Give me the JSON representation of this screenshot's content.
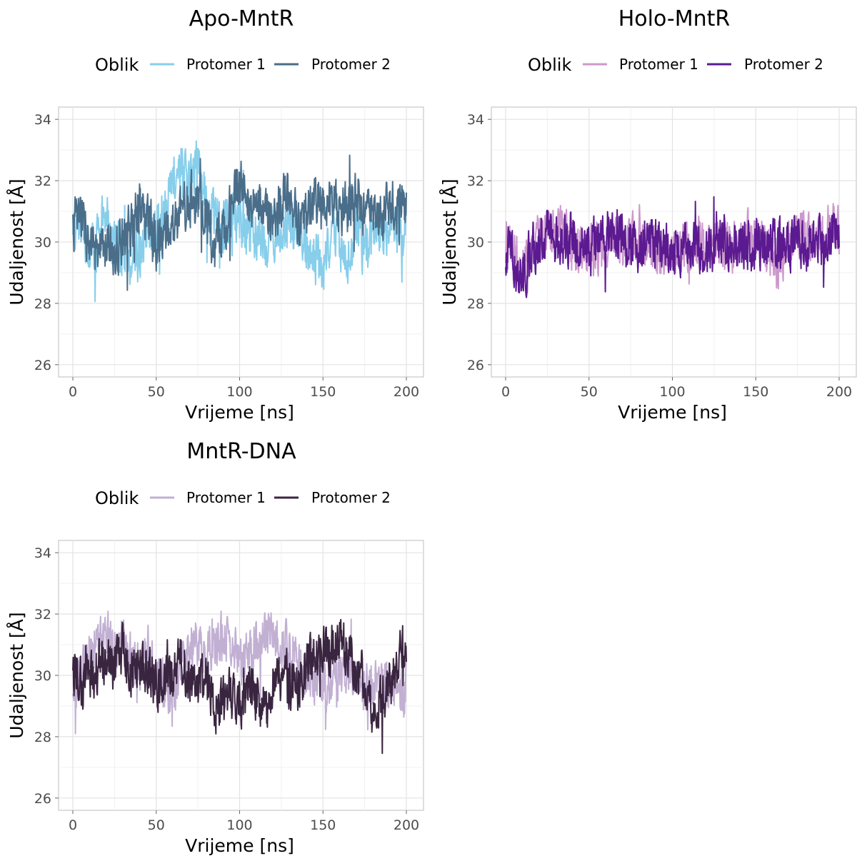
{
  "chart_data": [
    {
      "type": "line",
      "title": "Apo-MntR",
      "xlabel": "Vrijeme [ns]",
      "ylabel": "Udaljenost [Å]",
      "xlim": [
        0,
        200
      ],
      "ylim": [
        25.6,
        34.4
      ],
      "xticks": [
        0,
        50,
        100,
        150,
        200
      ],
      "yticks": [
        26,
        28,
        30,
        32,
        34
      ],
      "grid": true,
      "legend_position": "top",
      "legend_title": "Oblik",
      "series": [
        {
          "name": "Protomer 1",
          "color": "#87ceeb",
          "x": [
            0,
            5,
            10,
            15,
            20,
            25,
            30,
            35,
            40,
            45,
            50,
            55,
            60,
            65,
            70,
            75,
            80,
            85,
            90,
            95,
            100,
            105,
            110,
            115,
            120,
            125,
            130,
            135,
            140,
            145,
            150,
            155,
            160,
            165,
            170,
            175,
            180,
            185,
            190,
            195,
            200
          ],
          "y": [
            30.0,
            30.5,
            29.8,
            30.2,
            30.9,
            29.9,
            29.7,
            29.4,
            29.8,
            30.2,
            30.6,
            31.2,
            31.8,
            32.4,
            31.9,
            32.6,
            31.4,
            30.8,
            30.5,
            31.1,
            30.6,
            30.3,
            30.2,
            29.8,
            30.4,
            30.1,
            30.8,
            30.4,
            29.8,
            29.6,
            28.9,
            30.2,
            29.8,
            29.5,
            30.3,
            29.8,
            29.9,
            30.2,
            30.6,
            30.3,
            30.2
          ]
        },
        {
          "name": "Protomer 2",
          "color": "#4a6e8a",
          "x": [
            0,
            5,
            10,
            15,
            20,
            25,
            30,
            35,
            40,
            45,
            50,
            55,
            60,
            65,
            70,
            75,
            80,
            85,
            90,
            95,
            100,
            105,
            110,
            115,
            120,
            125,
            130,
            135,
            140,
            145,
            150,
            155,
            160,
            165,
            170,
            175,
            180,
            185,
            190,
            195,
            200
          ],
          "y": [
            30.6,
            30.9,
            30.0,
            29.4,
            29.9,
            29.6,
            30.2,
            30.6,
            31.2,
            30.7,
            30.0,
            30.4,
            30.3,
            31.0,
            31.5,
            31.2,
            30.9,
            29.7,
            30.4,
            31.1,
            31.8,
            31.4,
            31.0,
            31.2,
            30.7,
            31.4,
            31.3,
            30.6,
            31.0,
            31.6,
            31.0,
            31.5,
            31.2,
            31.0,
            31.6,
            31.1,
            30.8,
            30.9,
            31.2,
            31.0,
            31.4
          ]
        }
      ]
    },
    {
      "type": "line",
      "title": "Holo-MntR",
      "xlabel": "Vrijeme [ns]",
      "ylabel": "Udaljenost [Å]",
      "xlim": [
        0,
        200
      ],
      "ylim": [
        25.6,
        34.4
      ],
      "xticks": [
        0,
        50,
        100,
        150,
        200
      ],
      "yticks": [
        26,
        28,
        30,
        32,
        34
      ],
      "grid": true,
      "legend_position": "top",
      "legend_title": "Oblik",
      "series": [
        {
          "name": "Protomer 1",
          "color": "#cc99cc",
          "x": [
            0,
            5,
            10,
            15,
            20,
            25,
            30,
            35,
            40,
            45,
            50,
            55,
            60,
            65,
            70,
            75,
            80,
            85,
            90,
            95,
            100,
            105,
            110,
            115,
            120,
            125,
            130,
            135,
            140,
            145,
            150,
            155,
            160,
            165,
            170,
            175,
            180,
            185,
            190,
            195,
            200
          ],
          "y": [
            30.0,
            29.6,
            29.2,
            29.8,
            30.1,
            30.3,
            30.6,
            30.2,
            29.9,
            29.8,
            29.6,
            29.8,
            29.9,
            30.1,
            30.0,
            30.2,
            29.9,
            29.8,
            29.7,
            29.6,
            29.7,
            29.8,
            29.9,
            30.0,
            30.1,
            30.0,
            29.9,
            29.8,
            29.9,
            30.1,
            30.2,
            30.0,
            29.6,
            29.4,
            30.0,
            30.6,
            30.3,
            29.8,
            30.2,
            30.7,
            30.3
          ]
        },
        {
          "name": "Protomer 2",
          "color": "#5c1a91",
          "x": [
            0,
            5,
            10,
            15,
            20,
            25,
            30,
            35,
            40,
            45,
            50,
            55,
            60,
            65,
            70,
            75,
            80,
            85,
            90,
            95,
            100,
            105,
            110,
            115,
            120,
            125,
            130,
            135,
            140,
            145,
            150,
            155,
            160,
            165,
            170,
            175,
            180,
            185,
            190,
            195,
            200
          ],
          "y": [
            29.8,
            29.4,
            28.8,
            29.6,
            30.0,
            30.2,
            30.1,
            29.9,
            30.2,
            29.8,
            29.7,
            30.0,
            30.2,
            30.4,
            30.1,
            29.9,
            29.8,
            29.9,
            30.0,
            29.8,
            29.7,
            29.9,
            30.0,
            29.8,
            29.7,
            29.9,
            30.0,
            29.9,
            29.8,
            29.9,
            29.9,
            30.0,
            30.1,
            29.8,
            29.9,
            30.0,
            29.8,
            29.9,
            30.0,
            30.1,
            30.2
          ]
        }
      ]
    },
    {
      "type": "line",
      "title": "MntR-DNA",
      "xlabel": "Vrijeme [ns]",
      "ylabel": "Udaljenost [Å]",
      "xlim": [
        0,
        200
      ],
      "ylim": [
        25.6,
        34.4
      ],
      "xticks": [
        0,
        50,
        100,
        150,
        200
      ],
      "yticks": [
        26,
        28,
        30,
        32,
        34
      ],
      "grid": true,
      "legend_position": "top",
      "legend_title": "Oblik",
      "series": [
        {
          "name": "Protomer 1",
          "color": "#c2b0d3",
          "x": [
            0,
            5,
            10,
            15,
            20,
            25,
            30,
            35,
            40,
            45,
            50,
            55,
            60,
            65,
            70,
            75,
            80,
            85,
            90,
            95,
            100,
            105,
            110,
            115,
            120,
            125,
            130,
            135,
            140,
            145,
            150,
            155,
            160,
            165,
            170,
            175,
            180,
            185,
            190,
            195,
            200
          ],
          "y": [
            29.5,
            30.2,
            30.8,
            31.0,
            31.2,
            30.9,
            31.3,
            30.6,
            30.2,
            30.8,
            29.9,
            29.6,
            29.4,
            30.2,
            30.9,
            31.0,
            30.6,
            30.9,
            31.3,
            31.0,
            30.4,
            30.6,
            31.0,
            31.4,
            31.2,
            31.0,
            30.8,
            30.6,
            30.2,
            29.8,
            29.7,
            29.9,
            30.1,
            30.3,
            30.0,
            29.4,
            29.7,
            29.5,
            29.8,
            29.6,
            29.5
          ]
        },
        {
          "name": "Protomer 2",
          "color": "#3a2540",
          "x": [
            0,
            5,
            10,
            15,
            20,
            25,
            30,
            35,
            40,
            45,
            50,
            55,
            60,
            65,
            70,
            75,
            80,
            85,
            90,
            95,
            100,
            105,
            110,
            115,
            120,
            125,
            130,
            135,
            140,
            145,
            150,
            155,
            160,
            165,
            170,
            175,
            180,
            185,
            190,
            195,
            200
          ],
          "y": [
            30.2,
            29.8,
            30.0,
            30.3,
            30.6,
            30.4,
            30.9,
            30.1,
            30.4,
            30.2,
            29.8,
            30.0,
            30.2,
            30.5,
            30.0,
            29.8,
            29.9,
            29.0,
            29.2,
            29.4,
            29.1,
            29.5,
            29.4,
            28.8,
            29.6,
            29.9,
            29.5,
            29.6,
            30.1,
            30.6,
            30.8,
            30.9,
            31.2,
            30.8,
            30.2,
            29.8,
            28.8,
            29.1,
            29.8,
            30.6,
            31.1
          ]
        }
      ]
    }
  ]
}
